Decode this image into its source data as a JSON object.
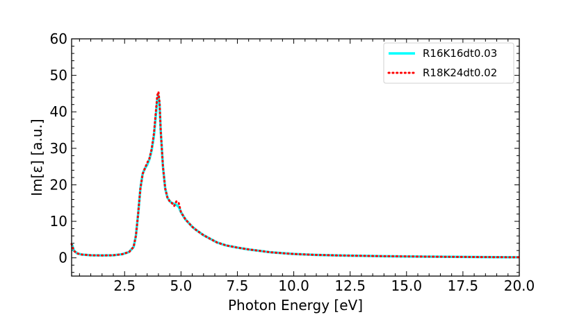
{
  "colors": {
    "series_a": "#00ffff",
    "series_b": "#ff0000",
    "axis": "#000000",
    "legend_border": "#d0d0d0",
    "background": "#ffffff"
  },
  "chart_data": {
    "type": "line",
    "title": "",
    "xlabel": "Photon Energy [eV]",
    "ylabel": "Im[ε] [a.u.]",
    "xlim": [
      0.15,
      20.0
    ],
    "ylim": [
      -5,
      60
    ],
    "x_major_ticks": [
      2.5,
      5.0,
      7.5,
      10.0,
      12.5,
      15.0,
      17.5,
      20.0
    ],
    "x_tick_labels": [
      "2.5",
      "5.0",
      "7.5",
      "10.0",
      "12.5",
      "15.0",
      "17.5",
      "20.0"
    ],
    "y_major_ticks": [
      0,
      10,
      20,
      30,
      40,
      50,
      60
    ],
    "y_tick_labels": [
      "0",
      "10",
      "20",
      "30",
      "40",
      "50",
      "60"
    ],
    "grid": false,
    "legend_position": "top-right",
    "series": [
      {
        "name": "R16K16dt0.03",
        "style": "solid",
        "x": [
          0.15,
          0.25,
          0.4,
          0.6,
          1.0,
          1.5,
          2.0,
          2.4,
          2.7,
          2.9,
          3.0,
          3.1,
          3.2,
          3.3,
          3.4,
          3.5,
          3.6,
          3.7,
          3.8,
          3.9,
          3.95,
          4.0,
          4.05,
          4.1,
          4.2,
          4.3,
          4.4,
          4.5,
          4.6,
          4.7,
          4.8,
          4.9,
          5.0,
          5.1,
          5.2,
          5.35,
          5.5,
          5.7,
          6.0,
          6.3,
          6.6,
          7.0,
          7.5,
          8.0,
          9.0,
          10.0,
          11.0,
          12.0,
          13.0,
          14.0,
          15.0,
          16.0,
          17.0,
          18.0,
          19.0,
          20.0
        ],
        "y": [
          4.0,
          2.0,
          1.2,
          0.9,
          0.7,
          0.65,
          0.7,
          1.0,
          1.6,
          3.0,
          6.0,
          12.0,
          19.0,
          23.0,
          24.5,
          25.5,
          27.0,
          29.5,
          33.5,
          40.0,
          43.5,
          44.5,
          42.0,
          35.0,
          25.0,
          19.0,
          16.5,
          15.5,
          15.0,
          14.8,
          14.5,
          14.0,
          12.5,
          11.5,
          10.5,
          9.5,
          8.5,
          7.5,
          6.2,
          5.2,
          4.2,
          3.4,
          2.8,
          2.3,
          1.5,
          1.05,
          0.8,
          0.65,
          0.55,
          0.45,
          0.38,
          0.32,
          0.27,
          0.22,
          0.18,
          0.15
        ]
      },
      {
        "name": "R18K24dt0.02",
        "style": "dotted",
        "x": [
          0.15,
          0.25,
          0.4,
          0.6,
          1.0,
          1.5,
          2.0,
          2.4,
          2.7,
          2.9,
          3.0,
          3.1,
          3.2,
          3.3,
          3.4,
          3.5,
          3.6,
          3.7,
          3.8,
          3.9,
          3.95,
          4.0,
          4.05,
          4.1,
          4.2,
          4.3,
          4.4,
          4.5,
          4.6,
          4.7,
          4.8,
          4.9,
          5.0,
          5.1,
          5.2,
          5.35,
          5.5,
          5.7,
          6.0,
          6.3,
          6.6,
          7.0,
          7.5,
          8.0,
          9.0,
          10.0,
          11.0,
          12.0,
          13.0,
          14.0,
          15.0,
          16.0,
          17.0,
          18.0,
          19.0,
          20.0
        ],
        "y": [
          3.8,
          1.9,
          1.2,
          0.9,
          0.7,
          0.65,
          0.7,
          1.0,
          1.6,
          3.0,
          6.0,
          12.0,
          19.0,
          23.0,
          24.5,
          26.0,
          27.2,
          29.8,
          34.0,
          41.0,
          44.5,
          45.5,
          42.5,
          35.0,
          25.0,
          19.0,
          16.5,
          15.5,
          15.0,
          14.2,
          15.5,
          15.0,
          12.5,
          11.5,
          10.5,
          9.5,
          8.5,
          7.5,
          6.2,
          5.2,
          4.2,
          3.4,
          2.8,
          2.3,
          1.5,
          1.05,
          0.8,
          0.65,
          0.55,
          0.45,
          0.38,
          0.32,
          0.27,
          0.22,
          0.18,
          0.15
        ]
      }
    ]
  }
}
